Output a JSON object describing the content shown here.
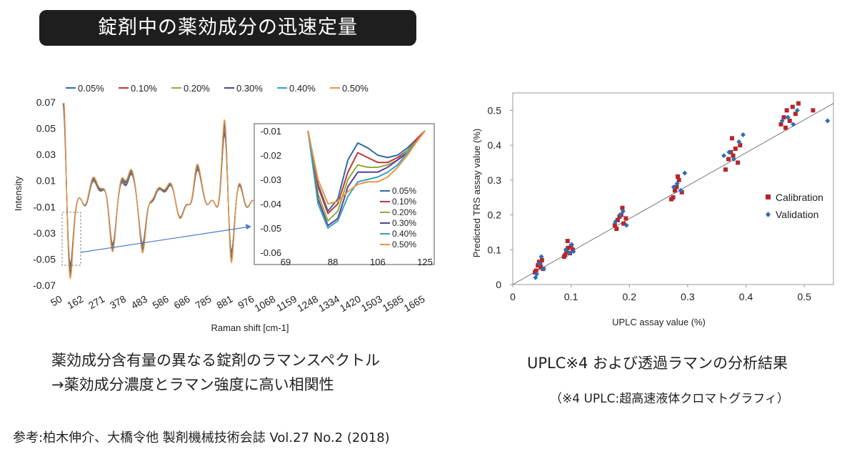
{
  "title": "錠剤中の薬効成分の迅速定量",
  "left_caption": {
    "line1": "薬効成分含有量の異なる錠剤のラマンスペクトル",
    "line2": "→薬効成分濃度とラマン強度に高い相関性"
  },
  "right_caption": {
    "line1": "UPLC※4 および透過ラマンの分析結果",
    "line2": "（※4 UPLC:超高速液体クロマトグラフィ）"
  },
  "reference": "参考:柏木伸介、大橋令他 製剤機械技術会誌 Vol.27 No.2 (2018)",
  "colors": {
    "c005": "#2e6ca8",
    "c010": "#c0393b",
    "c020": "#8cae3a",
    "c030": "#5b3f98",
    "c040": "#36a3c4",
    "c050": "#ee9440",
    "calibration": "#b5262b",
    "validation": "#2c6db5"
  },
  "chart_data": [
    {
      "type": "line",
      "title": "",
      "xlabel": "Raman shift [cm-1]",
      "ylabel": "Intensity",
      "x_tick_labels": [
        "50",
        "162",
        "271",
        "378",
        "483",
        "586",
        "686",
        "785",
        "881",
        "976",
        "1068",
        "1159",
        "1248",
        "1334",
        "1420",
        "1503",
        "1585",
        "1665"
      ],
      "y_tick_labels": [
        "0.07",
        "0.05",
        "0.03",
        "0.01",
        "-0.01",
        "-0.03",
        "-0.05",
        "-0.07"
      ],
      "ylim": [
        -0.07,
        0.07
      ],
      "legend": [
        "0.05%",
        "0.10%",
        "0.20%",
        "0.30%",
        "0.40%",
        "0.50%"
      ],
      "legend_position": "top",
      "series_note": "six nearly overlapping spectra",
      "inset": {
        "type": "line",
        "xlim": [
          69,
          125
        ],
        "ylim": [
          -0.06,
          -0.01
        ],
        "x_tick_labels": [
          "69",
          "88",
          "106",
          "125"
        ],
        "y_tick_labels": [
          "-0.01",
          "-0.02",
          "-0.03",
          "-0.04",
          "-0.05",
          "-0.06"
        ],
        "legend_position": "right",
        "series": [
          {
            "name": "0.05%",
            "color_key": "c005",
            "x": [
              78,
              82,
              86,
              90,
              94,
              98,
              102,
              106,
              110,
              114,
              118,
              122,
              125
            ],
            "y": [
              -0.01,
              -0.032,
              -0.043,
              -0.038,
              -0.022,
              -0.015,
              -0.017,
              -0.02,
              -0.021,
              -0.02,
              -0.017,
              -0.013,
              -0.01
            ]
          },
          {
            "name": "0.10%",
            "color_key": "c010",
            "x": [
              78,
              82,
              86,
              90,
              94,
              98,
              102,
              106,
              110,
              114,
              118,
              122,
              125
            ],
            "y": [
              -0.01,
              -0.033,
              -0.044,
              -0.04,
              -0.027,
              -0.019,
              -0.021,
              -0.023,
              -0.023,
              -0.021,
              -0.018,
              -0.013,
              -0.01
            ]
          },
          {
            "name": "0.20%",
            "color_key": "c020",
            "x": [
              78,
              82,
              86,
              90,
              94,
              98,
              102,
              106,
              110,
              114,
              118,
              122,
              125
            ],
            "y": [
              -0.01,
              -0.036,
              -0.047,
              -0.043,
              -0.03,
              -0.024,
              -0.025,
              -0.025,
              -0.024,
              -0.022,
              -0.018,
              -0.014,
              -0.01
            ]
          },
          {
            "name": "0.30%",
            "color_key": "c030",
            "x": [
              78,
              82,
              86,
              90,
              94,
              98,
              102,
              106,
              110,
              114,
              118,
              122,
              125
            ],
            "y": [
              -0.01,
              -0.038,
              -0.049,
              -0.046,
              -0.033,
              -0.027,
              -0.027,
              -0.027,
              -0.025,
              -0.022,
              -0.019,
              -0.014,
              -0.01
            ]
          },
          {
            "name": "0.40%",
            "color_key": "c040",
            "x": [
              78,
              82,
              86,
              90,
              94,
              98,
              102,
              106,
              110,
              114,
              118,
              122,
              125
            ],
            "y": [
              -0.01,
              -0.04,
              -0.05,
              -0.047,
              -0.037,
              -0.031,
              -0.03,
              -0.029,
              -0.027,
              -0.024,
              -0.019,
              -0.014,
              -0.01
            ]
          },
          {
            "name": "0.50%",
            "color_key": "c050",
            "x": [
              78,
              82,
              86,
              90,
              94,
              98,
              102,
              106,
              110,
              114,
              118,
              122,
              125
            ],
            "y": [
              -0.01,
              -0.03,
              -0.04,
              -0.039,
              -0.035,
              -0.032,
              -0.031,
              -0.031,
              -0.029,
              -0.025,
              -0.02,
              -0.014,
              -0.01
            ]
          }
        ]
      }
    },
    {
      "type": "scatter",
      "title": "",
      "xlabel": "UPLC assay value (%)",
      "ylabel": "Predicted TRS assay value (%)",
      "xlim": [
        0,
        0.55
      ],
      "ylim": [
        0,
        0.55
      ],
      "x_tick_labels": [
        "0",
        "0.1",
        "0.2",
        "0.3",
        "0.4",
        "0.5"
      ],
      "y_tick_labels": [
        "0",
        "0.1",
        "0.2",
        "0.3",
        "0.4",
        "0.5"
      ],
      "legend_position": "right",
      "fit_line": [
        [
          0.0,
          0.0
        ],
        [
          0.55,
          0.52
        ]
      ],
      "series": [
        {
          "name": "Calibration",
          "color_key": "calibration",
          "marker": "square",
          "x": [
            0.04,
            0.043,
            0.045,
            0.048,
            0.05,
            0.052,
            0.038,
            0.047,
            0.09,
            0.092,
            0.095,
            0.098,
            0.1,
            0.103,
            0.088,
            0.094,
            0.175,
            0.18,
            0.183,
            0.186,
            0.19,
            0.194,
            0.178,
            0.188,
            0.275,
            0.278,
            0.281,
            0.285,
            0.29,
            0.272,
            0.283,
            0.365,
            0.37,
            0.374,
            0.378,
            0.382,
            0.386,
            0.39,
            0.376,
            0.46,
            0.465,
            0.47,
            0.475,
            0.48,
            0.485,
            0.49,
            0.468,
            0.515
          ],
          "y": [
            0.04,
            0.055,
            0.065,
            0.05,
            0.07,
            0.045,
            0.035,
            0.06,
            0.085,
            0.095,
            0.105,
            0.09,
            0.11,
            0.1,
            0.08,
            0.125,
            0.17,
            0.185,
            0.195,
            0.2,
            0.175,
            0.19,
            0.16,
            0.22,
            0.25,
            0.27,
            0.28,
            0.3,
            0.265,
            0.245,
            0.31,
            0.33,
            0.36,
            0.38,
            0.37,
            0.39,
            0.35,
            0.4,
            0.42,
            0.46,
            0.48,
            0.5,
            0.47,
            0.51,
            0.49,
            0.52,
            0.45,
            0.5
          ]
        },
        {
          "name": "Validation",
          "color_key": "validation",
          "marker": "diamond",
          "x": [
            0.041,
            0.046,
            0.049,
            0.053,
            0.039,
            0.091,
            0.097,
            0.101,
            0.104,
            0.176,
            0.184,
            0.189,
            0.195,
            0.276,
            0.282,
            0.288,
            0.295,
            0.362,
            0.371,
            0.379,
            0.388,
            0.395,
            0.462,
            0.472,
            0.481,
            0.488,
            0.54
          ],
          "y": [
            0.03,
            0.06,
            0.08,
            0.045,
            0.02,
            0.1,
            0.09,
            0.115,
            0.095,
            0.18,
            0.2,
            0.21,
            0.17,
            0.28,
            0.29,
            0.27,
            0.32,
            0.37,
            0.38,
            0.36,
            0.41,
            0.43,
            0.47,
            0.48,
            0.46,
            0.5,
            0.47
          ]
        }
      ]
    }
  ]
}
